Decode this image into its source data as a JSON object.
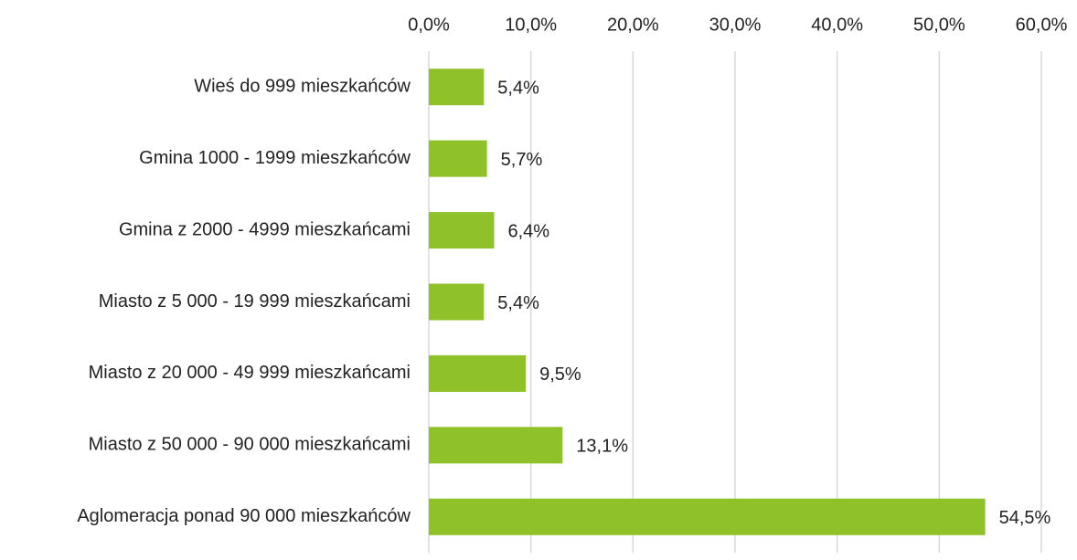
{
  "chart_data": {
    "type": "bar",
    "orientation": "horizontal",
    "categories": [
      "Wieś do 999 mieszkańców",
      "Gmina 1000 - 1999 mieszkańców",
      "Gmina z 2000 - 4999 mieszkańcami",
      "Miasto z 5 000 - 19 999 mieszkańcami",
      "Miasto z 20 000 - 49 999 mieszkańcami",
      "Miasto z 50 000 - 90 000 mieszkańcami",
      "Aglomeracja ponad 90 000 mieszkańców"
    ],
    "values": [
      5.4,
      5.7,
      6.4,
      5.4,
      9.5,
      13.1,
      54.5
    ],
    "value_labels": [
      "5,4%",
      "5,7%",
      "6,4%",
      "5,4%",
      "9,5%",
      "13,1%",
      "54,5%"
    ],
    "color": "#8fc229",
    "xlim": [
      0,
      60
    ],
    "xticks": [
      {
        "value": 0,
        "label": "0,0%"
      },
      {
        "value": 10,
        "label": "10,0%"
      },
      {
        "value": 20,
        "label": "20,0%"
      },
      {
        "value": 30,
        "label": "30,0%"
      },
      {
        "value": 40,
        "label": "40,0%"
      },
      {
        "value": 50,
        "label": "50,0%"
      },
      {
        "value": 60,
        "label": "60,0%"
      }
    ],
    "grid": true
  }
}
